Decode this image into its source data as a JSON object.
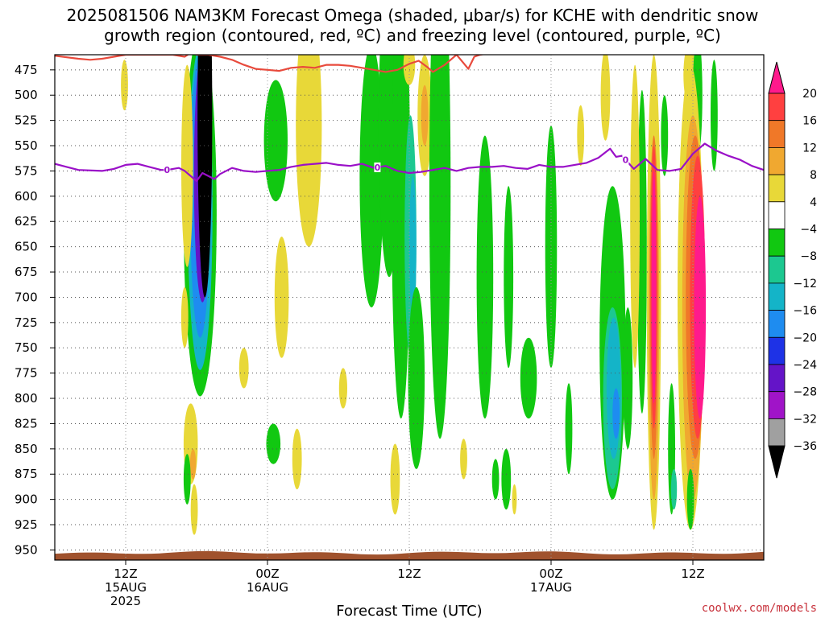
{
  "header": {
    "title_line1": "2025081506 NAM3KM Forecast Omega (shaded, μbar/s) for KCHE with dendritic snow",
    "title_line2": "growth region (contoured, red, ºC) and freezing level (contoured, purple, ºC)"
  },
  "credit": "coolwx.com/models",
  "colors": {
    "dgz_contour": "#e84a3c",
    "freezing_contour": "#9a10c8",
    "terrain": "#a0522d",
    "grid": "#555555"
  },
  "chart_data": {
    "type": "heatmap",
    "y_axis": {
      "ticks": [
        "475",
        "500",
        "525",
        "550",
        "575",
        "600",
        "625",
        "650",
        "675",
        "700",
        "725",
        "750",
        "775",
        "800",
        "825",
        "850",
        "875",
        "900",
        "925",
        "950"
      ],
      "range": [
        460,
        960
      ]
    },
    "x_axis": {
      "title": "Forecast Time (UTC)",
      "ticks": [
        {
          "h": 12,
          "label": "12Z",
          "sub1": "15AUG",
          "sub2": "2025"
        },
        {
          "h": 24,
          "label": "00Z",
          "sub1": "16AUG",
          "sub2": ""
        },
        {
          "h": 36,
          "label": "12Z",
          "sub1": "",
          "sub2": ""
        },
        {
          "h": 48,
          "label": "00Z",
          "sub1": "17AUG",
          "sub2": ""
        },
        {
          "h": 60,
          "label": "12Z",
          "sub1": "",
          "sub2": ""
        }
      ],
      "range": [
        6,
        66
      ]
    },
    "colorbar": {
      "levels": [
        "20",
        "16",
        "12",
        "8",
        "4",
        "−4",
        "−8",
        "−12",
        "−16",
        "−20",
        "−24",
        "−28",
        "−32",
        "−36"
      ],
      "bins": [
        {
          "range": [
            20,
            24
          ],
          "color": "#ff1a8c"
        },
        {
          "range": [
            16,
            20
          ],
          "color": "#ff4040"
        },
        {
          "range": [
            12,
            16
          ],
          "color": "#f07828"
        },
        {
          "range": [
            8,
            12
          ],
          "color": "#f0a830"
        },
        {
          "range": [
            4,
            8
          ],
          "color": "#e8d838"
        },
        {
          "range": [
            -4,
            4
          ],
          "color": "#ffffff"
        },
        {
          "range": [
            -8,
            -4
          ],
          "color": "#11c811"
        },
        {
          "range": [
            -12,
            -8
          ],
          "color": "#1cc890"
        },
        {
          "range": [
            -16,
            -12
          ],
          "color": "#14b4c8"
        },
        {
          "range": [
            -20,
            -16
          ],
          "color": "#1e8cf0"
        },
        {
          "range": [
            -24,
            -20
          ],
          "color": "#1e32e6"
        },
        {
          "range": [
            -28,
            -24
          ],
          "color": "#6414c8"
        },
        {
          "range": [
            -32,
            -28
          ],
          "color": "#a014c8"
        },
        {
          "range": [
            -36,
            -32
          ],
          "color": "#a0a0a0"
        },
        {
          "range": [
            -40,
            -36
          ],
          "color": "#000000"
        }
      ]
    },
    "freezing_level": {
      "label": "0",
      "points": [
        [
          6,
          568
        ],
        [
          7,
          571
        ],
        [
          8,
          574
        ],
        [
          10,
          575
        ],
        [
          11,
          573
        ],
        [
          12,
          569
        ],
        [
          13,
          568
        ],
        [
          14,
          571
        ],
        [
          15,
          574
        ],
        [
          15.5,
          574
        ],
        [
          16.5,
          572
        ],
        [
          17,
          575
        ],
        [
          18,
          585
        ],
        [
          18.5,
          577
        ],
        [
          19.5,
          583
        ],
        [
          20,
          578
        ],
        [
          21,
          572
        ],
        [
          22,
          575
        ],
        [
          23,
          576
        ],
        [
          24,
          575
        ],
        [
          25,
          574
        ],
        [
          26,
          571
        ],
        [
          27,
          569
        ],
        [
          28,
          568
        ],
        [
          29,
          567
        ],
        [
          30,
          569
        ],
        [
          31,
          570
        ],
        [
          32,
          568
        ],
        [
          33,
          572
        ],
        [
          34,
          570
        ],
        [
          35,
          575
        ],
        [
          36,
          577
        ],
        [
          37,
          576
        ],
        [
          38,
          574
        ],
        [
          39,
          572
        ],
        [
          40,
          575
        ],
        [
          41,
          572
        ],
        [
          42,
          571
        ],
        [
          43,
          571
        ],
        [
          44,
          570
        ],
        [
          45,
          572
        ],
        [
          46,
          573
        ],
        [
          47,
          569
        ],
        [
          48,
          571
        ],
        [
          49,
          571
        ],
        [
          50,
          569
        ],
        [
          51,
          567
        ],
        [
          52,
          562
        ],
        [
          53,
          553
        ],
        [
          53.5,
          561
        ],
        [
          54,
          560
        ],
        [
          55,
          573
        ],
        [
          56,
          563
        ],
        [
          57,
          574
        ],
        [
          58,
          575
        ],
        [
          59,
          573
        ],
        [
          60,
          558
        ],
        [
          61,
          548
        ],
        [
          62,
          555
        ],
        [
          63,
          560
        ],
        [
          64,
          564
        ],
        [
          65,
          570
        ],
        [
          66,
          574
        ]
      ],
      "label_hours": [
        15.5,
        33.3,
        54.3
      ]
    },
    "dgz_boundary": {
      "points": [
        [
          6,
          461
        ],
        [
          8,
          464
        ],
        [
          9,
          465
        ],
        [
          10,
          464
        ],
        [
          11,
          462
        ],
        [
          12,
          460
        ],
        [
          16,
          460
        ],
        [
          17,
          462
        ],
        [
          17.5,
          458
        ],
        [
          18,
          460
        ],
        [
          19,
          460
        ],
        [
          20,
          462
        ],
        [
          21,
          465
        ],
        [
          22,
          470
        ],
        [
          23,
          474
        ],
        [
          24,
          475
        ],
        [
          25,
          476
        ],
        [
          26,
          473
        ],
        [
          27,
          472
        ],
        [
          28,
          473
        ],
        [
          29,
          470
        ],
        [
          30,
          470
        ],
        [
          31,
          471
        ],
        [
          32,
          473
        ],
        [
          33,
          475
        ],
        [
          34,
          477
        ],
        [
          35,
          475
        ],
        [
          36,
          469
        ],
        [
          36.8,
          466
        ],
        [
          37.5,
          472
        ],
        [
          38,
          477
        ],
        [
          39,
          470
        ],
        [
          40,
          460
        ],
        [
          41,
          474
        ],
        [
          41.5,
          462
        ],
        [
          42,
          460
        ],
        [
          43,
          458
        ],
        [
          44,
          458
        ]
      ]
    },
    "omega_regions": [
      {
        "bin": 6,
        "cx": 18.3,
        "cy": 618,
        "rx": 1.4,
        "ry": 180
      },
      {
        "bin": 8,
        "cx": 18.3,
        "cy": 612,
        "rx": 1.05,
        "ry": 160
      },
      {
        "bin": 9,
        "cx": 18.3,
        "cy": 600,
        "rx": 0.85,
        "ry": 140
      },
      {
        "bin": 11,
        "cx": 18.5,
        "cy": 580,
        "rx": 0.72,
        "ry": 125
      },
      {
        "bin": 14,
        "cx": 18.7,
        "cy": 520,
        "rx": 0.62,
        "ry": 180
      },
      {
        "bin": 4,
        "cx": 17.2,
        "cy": 570,
        "rx": 0.5,
        "ry": 100
      },
      {
        "bin": 4,
        "cx": 17.5,
        "cy": 845,
        "rx": 0.6,
        "ry": 40
      },
      {
        "bin": 3,
        "cx": 17.7,
        "cy": 865,
        "rx": 0.25,
        "ry": 15
      },
      {
        "bin": 6,
        "cx": 17.2,
        "cy": 880,
        "rx": 0.3,
        "ry": 25
      },
      {
        "bin": 4,
        "cx": 17.8,
        "cy": 910,
        "rx": 0.3,
        "ry": 25
      },
      {
        "bin": 4,
        "cx": 11.9,
        "cy": 490,
        "rx": 0.3,
        "ry": 25
      },
      {
        "bin": 4,
        "cx": 17.0,
        "cy": 720,
        "rx": 0.3,
        "ry": 30
      },
      {
        "bin": 6,
        "cx": 24.7,
        "cy": 545,
        "rx": 1.0,
        "ry": 60
      },
      {
        "bin": 4,
        "cx": 27.5,
        "cy": 530,
        "rx": 1.1,
        "ry": 120
      },
      {
        "bin": 4,
        "cx": 25.2,
        "cy": 700,
        "rx": 0.6,
        "ry": 60
      },
      {
        "bin": 6,
        "cx": 24.5,
        "cy": 845,
        "rx": 0.6,
        "ry": 20
      },
      {
        "bin": 4,
        "cx": 22.0,
        "cy": 770,
        "rx": 0.4,
        "ry": 20
      },
      {
        "bin": 4,
        "cx": 26.5,
        "cy": 860,
        "rx": 0.4,
        "ry": 30
      },
      {
        "bin": 4,
        "cx": 30.4,
        "cy": 790,
        "rx": 0.35,
        "ry": 20
      },
      {
        "bin": 6,
        "cx": 32.8,
        "cy": 580,
        "rx": 1.0,
        "ry": 130
      },
      {
        "bin": 6,
        "cx": 34.3,
        "cy": 530,
        "rx": 0.9,
        "ry": 150
      },
      {
        "bin": 6,
        "cx": 35.3,
        "cy": 600,
        "rx": 0.8,
        "ry": 220
      },
      {
        "bin": 7,
        "cx": 36.1,
        "cy": 640,
        "rx": 0.5,
        "ry": 120
      },
      {
        "bin": 8,
        "cx": 36.3,
        "cy": 650,
        "rx": 0.3,
        "ry": 70
      },
      {
        "bin": 6,
        "cx": 36.6,
        "cy": 780,
        "rx": 0.7,
        "ry": 90
      },
      {
        "bin": 4,
        "cx": 34.8,
        "cy": 880,
        "rx": 0.4,
        "ry": 35
      },
      {
        "bin": 4,
        "cx": 37.3,
        "cy": 520,
        "rx": 0.6,
        "ry": 60
      },
      {
        "bin": 3,
        "cx": 37.3,
        "cy": 520,
        "rx": 0.3,
        "ry": 30
      },
      {
        "bin": 6,
        "cx": 38.6,
        "cy": 590,
        "rx": 0.9,
        "ry": 250
      },
      {
        "bin": 4,
        "cx": 36.0,
        "cy": 470,
        "rx": 0.5,
        "ry": 20
      },
      {
        "bin": 4,
        "cx": 40.6,
        "cy": 860,
        "rx": 0.3,
        "ry": 20
      },
      {
        "bin": 6,
        "cx": 42.4,
        "cy": 680,
        "rx": 0.7,
        "ry": 140
      },
      {
        "bin": 6,
        "cx": 44.4,
        "cy": 680,
        "rx": 0.4,
        "ry": 90
      },
      {
        "bin": 6,
        "cx": 46.1,
        "cy": 780,
        "rx": 0.7,
        "ry": 40
      },
      {
        "bin": 6,
        "cx": 44.2,
        "cy": 880,
        "rx": 0.4,
        "ry": 30
      },
      {
        "bin": 6,
        "cx": 43.3,
        "cy": 880,
        "rx": 0.3,
        "ry": 20
      },
      {
        "bin": 4,
        "cx": 44.9,
        "cy": 900,
        "rx": 0.2,
        "ry": 15
      },
      {
        "bin": 6,
        "cx": 48.0,
        "cy": 650,
        "rx": 0.5,
        "ry": 120
      },
      {
        "bin": 6,
        "cx": 49.5,
        "cy": 830,
        "rx": 0.3,
        "ry": 45
      },
      {
        "bin": 4,
        "cx": 50.5,
        "cy": 540,
        "rx": 0.3,
        "ry": 30
      },
      {
        "bin": 4,
        "cx": 52.6,
        "cy": 500,
        "rx": 0.4,
        "ry": 45
      },
      {
        "bin": 6,
        "cx": 53.2,
        "cy": 745,
        "rx": 1.1,
        "ry": 155
      },
      {
        "bin": 7,
        "cx": 53.2,
        "cy": 800,
        "rx": 0.8,
        "ry": 90
      },
      {
        "bin": 8,
        "cx": 53.3,
        "cy": 790,
        "rx": 0.6,
        "ry": 70
      },
      {
        "bin": 9,
        "cx": 53.5,
        "cy": 815,
        "rx": 0.3,
        "ry": 25
      },
      {
        "bin": 6,
        "cx": 54.5,
        "cy": 780,
        "rx": 0.4,
        "ry": 70
      },
      {
        "bin": 6,
        "cx": 55.7,
        "cy": 655,
        "rx": 0.4,
        "ry": 160
      },
      {
        "bin": 4,
        "cx": 55.1,
        "cy": 620,
        "rx": 0.4,
        "ry": 150
      },
      {
        "bin": 4,
        "cx": 56.7,
        "cy": 695,
        "rx": 0.6,
        "ry": 235
      },
      {
        "bin": 3,
        "cx": 56.7,
        "cy": 720,
        "rx": 0.45,
        "ry": 180
      },
      {
        "bin": 2,
        "cx": 56.7,
        "cy": 700,
        "rx": 0.35,
        "ry": 160
      },
      {
        "bin": 1,
        "cx": 56.7,
        "cy": 690,
        "rx": 0.28,
        "ry": 140
      },
      {
        "bin": 0,
        "cx": 56.7,
        "cy": 690,
        "rx": 0.2,
        "ry": 115
      },
      {
        "bin": 6,
        "cx": 57.6,
        "cy": 540,
        "rx": 0.3,
        "ry": 40
      },
      {
        "bin": 6,
        "cx": 58.2,
        "cy": 850,
        "rx": 0.3,
        "ry": 65
      },
      {
        "bin": 7,
        "cx": 58.4,
        "cy": 890,
        "rx": 0.25,
        "ry": 20
      },
      {
        "bin": 4,
        "cx": 59.7,
        "cy": 480,
        "rx": 0.5,
        "ry": 30
      },
      {
        "bin": 6,
        "cx": 60.4,
        "cy": 500,
        "rx": 0.4,
        "ry": 60
      },
      {
        "bin": 4,
        "cx": 59.8,
        "cy": 700,
        "rx": 1.1,
        "ry": 230
      },
      {
        "bin": 3,
        "cx": 60.0,
        "cy": 710,
        "rx": 0.9,
        "ry": 190
      },
      {
        "bin": 2,
        "cx": 60.2,
        "cy": 700,
        "rx": 0.8,
        "ry": 160
      },
      {
        "bin": 1,
        "cx": 60.4,
        "cy": 700,
        "rx": 0.65,
        "ry": 140
      },
      {
        "bin": 0,
        "cx": 60.6,
        "cy": 710,
        "rx": 0.5,
        "ry": 110
      },
      {
        "bin": 6,
        "cx": 61.8,
        "cy": 520,
        "rx": 0.3,
        "ry": 55
      },
      {
        "bin": 6,
        "cx": 59.8,
        "cy": 900,
        "rx": 0.3,
        "ry": 30
      }
    ]
  }
}
